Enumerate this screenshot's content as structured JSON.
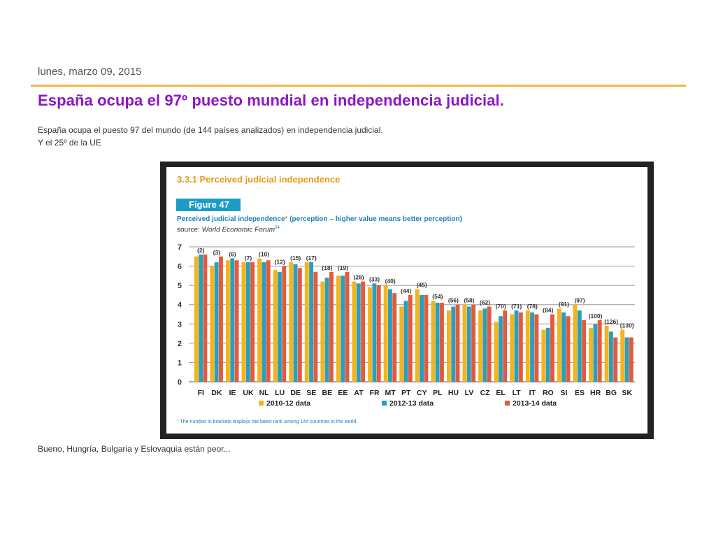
{
  "post": {
    "date": "lunes, marzo 09, 2015",
    "title": "España ocupa el 97º puesto mundial en independencia judicial.",
    "intro_line1": "España ocupa el puesto 97 del mundo (de 144 países analizados) en independencia judicial.",
    "intro_line2": "Y el 25º de la UE",
    "outro": "Bueno, Hungría, Bulgaria y Eslovaquia están peor..."
  },
  "figure": {
    "section_title": "3.3.1 Perceived judicial independence",
    "label": "Figure 47",
    "caption_main": "Perceived judicial independence",
    "caption_asterisk": "*",
    "caption_rest": " (perception – higher value means better perception)",
    "source_prefix": "source: ",
    "source_name": "World Economic Forum",
    "source_note": "54",
    "footnote_asterisk": "*",
    "footnote": " The number in brackets displays the latest rank among 144 countries in the world."
  },
  "chart_data": {
    "type": "bar",
    "title": "Perceived judicial independence",
    "categories": [
      "FI",
      "DK",
      "IE",
      "UK",
      "NL",
      "LU",
      "DE",
      "SE",
      "BE",
      "EE",
      "AT",
      "FR",
      "MT",
      "PT",
      "CY",
      "PL",
      "HU",
      "LV",
      "CZ",
      "EL",
      "LT",
      "IT",
      "RO",
      "SI",
      "ES",
      "HR",
      "BG",
      "SK"
    ],
    "ranks": [
      "(2)",
      "(3)",
      "(6)",
      "(7)",
      "(10)",
      "(12)",
      "(15)",
      "(17)",
      "(18)",
      "(19)",
      "(28)",
      "(33)",
      "(40)",
      "(44)",
      "(45)",
      "(54)",
      "(56)",
      "(58)",
      "(62)",
      "(70)",
      "(71)",
      "(78)",
      "(84)",
      "(91)",
      "(97)",
      "(100)",
      "(126)",
      "(130)"
    ],
    "series": [
      {
        "name": "2010-12 data",
        "color": "#f5b31c",
        "values": [
          6.5,
          6.0,
          6.3,
          6.2,
          6.4,
          5.8,
          6.2,
          6.2,
          5.2,
          5.5,
          5.2,
          4.9,
          5.0,
          3.9,
          4.8,
          4.2,
          3.7,
          4.0,
          3.7,
          3.1,
          3.5,
          3.7,
          2.7,
          3.8,
          4.0,
          2.8,
          2.9,
          2.7
        ]
      },
      {
        "name": "2012-13 data",
        "color": "#2a9fbd",
        "values": [
          6.6,
          6.2,
          6.4,
          6.2,
          6.2,
          5.7,
          6.1,
          6.2,
          5.4,
          5.5,
          5.1,
          5.1,
          4.8,
          4.2,
          4.5,
          4.1,
          3.9,
          3.9,
          3.8,
          3.4,
          3.7,
          3.6,
          2.8,
          3.6,
          3.7,
          3.0,
          2.6,
          2.3
        ]
      },
      {
        "name": "2013-14 data",
        "color": "#e45a3c",
        "values": [
          6.6,
          6.5,
          6.3,
          6.2,
          6.3,
          6.0,
          5.9,
          5.7,
          5.7,
          5.7,
          5.2,
          5.0,
          4.6,
          4.5,
          4.5,
          4.1,
          4.0,
          4.0,
          3.9,
          3.7,
          3.6,
          3.5,
          3.5,
          3.4,
          3.2,
          3.2,
          2.3,
          2.3
        ]
      }
    ],
    "ylim": [
      0,
      7
    ],
    "yticks": [
      0,
      1,
      2,
      3,
      4,
      5,
      6,
      7
    ],
    "grid": true,
    "legend_position": "bottom"
  }
}
